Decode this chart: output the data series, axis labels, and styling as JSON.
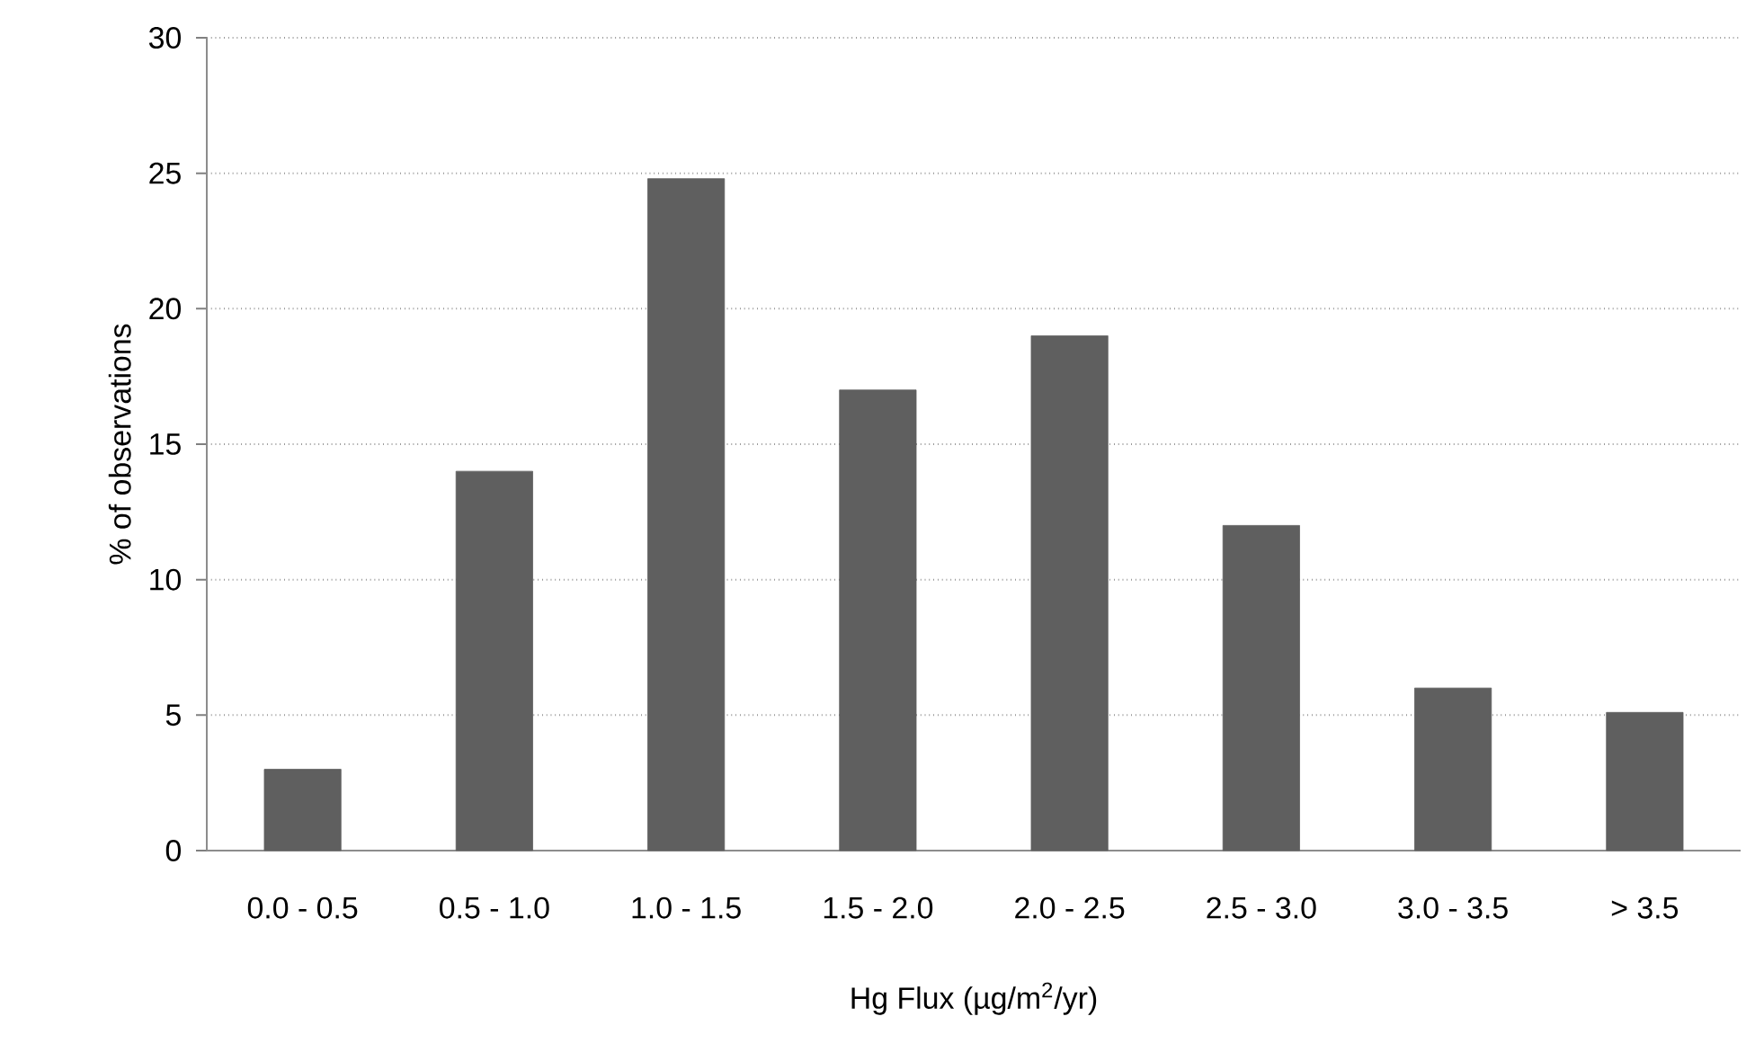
{
  "chart_data": {
    "type": "bar",
    "xlabel": "Hg Flux (µg/m$^{2}$/yr)",
    "ylabel": "% of observations",
    "categories": [
      "0.0 - 0.5",
      "0.5 - 1.0",
      "1.0 - 1.5",
      "1.5 - 2.0",
      "2.0 - 2.5",
      "2.5 - 3.0",
      "3.0 - 3.5",
      "> 3.5"
    ],
    "values": [
      3,
      14,
      24.8,
      17,
      19,
      12,
      6,
      5.1
    ],
    "color": "#5f5f5f",
    "ylim": [
      0,
      30
    ],
    "yticks": [
      0,
      5,
      10,
      15,
      20,
      25,
      30
    ],
    "grid": "y"
  }
}
